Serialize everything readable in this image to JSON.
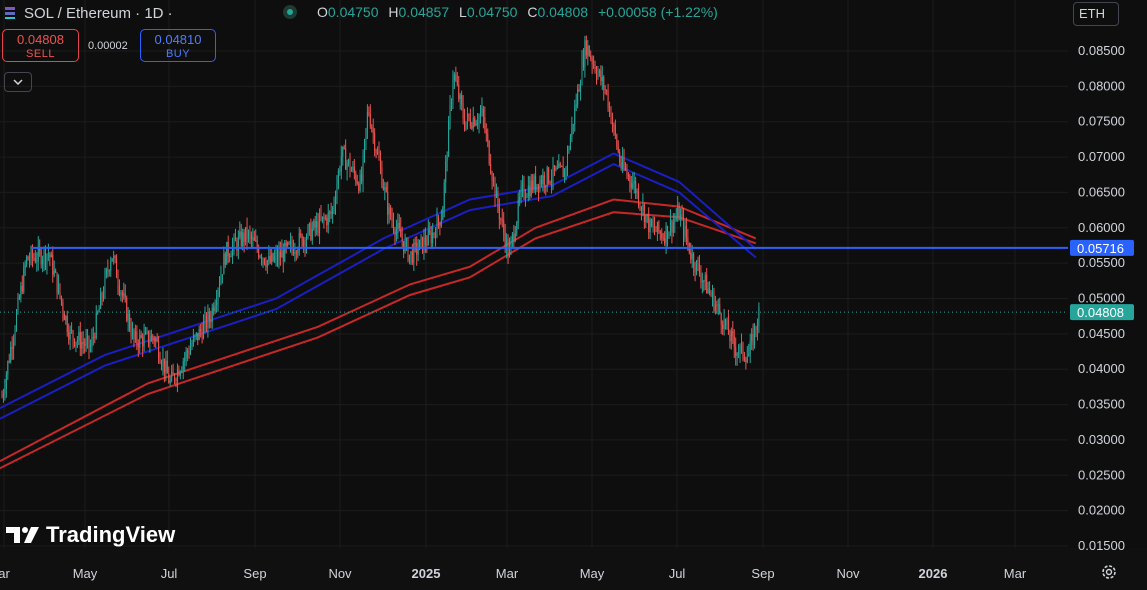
{
  "header": {
    "title": "SOL / Ethereum · 1D ·",
    "ohlc": {
      "o_label": "O",
      "o": "0.04750",
      "h_label": "H",
      "h": "0.04857",
      "l_label": "L",
      "l": "0.04750",
      "c_label": "C",
      "c": "0.04808",
      "change": "+0.00058 (+1.22%)"
    }
  },
  "trade": {
    "sell_price": "0.04808",
    "sell_label": "SELL",
    "spread": "0.00002",
    "buy_price": "0.04810",
    "buy_label": "BUY"
  },
  "currency": "ETH",
  "brand": "TradingView",
  "colors": {
    "background": "#0e0e0e",
    "up": "#26a69a",
    "down": "#ef5350",
    "blue_line": "#2962ff",
    "red_band": "#c62828",
    "blue_band": "#1a1fc4"
  },
  "chart_data": {
    "type": "candlestick",
    "symbol": "SOL / Ethereum",
    "interval": "1D",
    "x_tick_labels": [
      "ar",
      "May",
      "Jul",
      "Sep",
      "Nov",
      "2025",
      "Mar",
      "May",
      "Jul",
      "Sep",
      "Nov",
      "2026",
      "Mar"
    ],
    "y_tick_labels": [
      "0.08500",
      "0.08000",
      "0.07500",
      "0.07000",
      "0.06500",
      "0.06000",
      "0.05500",
      "0.05000",
      "0.04500",
      "0.04000",
      "0.03500",
      "0.03000",
      "0.02500",
      "0.02000",
      "0.01500"
    ],
    "ylim": [
      0.0125,
      0.0885
    ],
    "grid": true,
    "horizontal_line": {
      "value": 0.05716,
      "label": "0.05716"
    },
    "last_price": {
      "value": 0.04808,
      "label": "0.04808"
    },
    "price_path": [
      [
        "2024-03-01",
        0.0345
      ],
      [
        "2024-03-20",
        0.0555
      ],
      [
        "2024-04-05",
        0.0565
      ],
      [
        "2024-04-20",
        0.045
      ],
      [
        "2024-05-05",
        0.043
      ],
      [
        "2024-05-20",
        0.0565
      ],
      [
        "2024-06-05",
        0.044
      ],
      [
        "2024-06-20",
        0.0445
      ],
      [
        "2024-07-01",
        0.038
      ],
      [
        "2024-07-15",
        0.043
      ],
      [
        "2024-07-30",
        0.0475
      ],
      [
        "2024-08-10",
        0.0565
      ],
      [
        "2024-08-25",
        0.059
      ],
      [
        "2024-09-10",
        0.055
      ],
      [
        "2024-09-25",
        0.057
      ],
      [
        "2024-10-10",
        0.0595
      ],
      [
        "2024-10-25",
        0.062
      ],
      [
        "2024-11-01",
        0.0705
      ],
      [
        "2024-11-15",
        0.066
      ],
      [
        "2024-11-20",
        0.077
      ],
      [
        "2024-11-28",
        0.069
      ],
      [
        "2024-12-05",
        0.062
      ],
      [
        "2024-12-20",
        0.056
      ],
      [
        "2025-01-05",
        0.059
      ],
      [
        "2025-01-12",
        0.062
      ],
      [
        "2025-01-20",
        0.082
      ],
      [
        "2025-01-28",
        0.075
      ],
      [
        "2025-02-10",
        0.076
      ],
      [
        "2025-02-20",
        0.064
      ],
      [
        "2025-03-01",
        0.056
      ],
      [
        "2025-03-10",
        0.065
      ],
      [
        "2025-03-25",
        0.067
      ],
      [
        "2025-04-10",
        0.068
      ],
      [
        "2025-04-25",
        0.086
      ],
      [
        "2025-05-10",
        0.079
      ],
      [
        "2025-05-20",
        0.069
      ],
      [
        "2025-05-30",
        0.066
      ],
      [
        "2025-06-10",
        0.06
      ],
      [
        "2025-06-20",
        0.059
      ],
      [
        "2025-07-01",
        0.062
      ],
      [
        "2025-07-10",
        0.056
      ],
      [
        "2025-07-20",
        0.052
      ],
      [
        "2025-07-30",
        0.048
      ],
      [
        "2025-08-10",
        0.043
      ],
      [
        "2025-08-20",
        0.042
      ],
      [
        "2025-08-28",
        0.0485
      ]
    ],
    "red_band": [
      [
        [
          "2024-03-01",
          0.027
        ],
        [
          "2024-06-15",
          0.038
        ],
        [
          "2024-10-15",
          0.046
        ],
        [
          "2024-12-20",
          0.052
        ],
        [
          "2025-02-01",
          0.0545
        ],
        [
          "2025-03-20",
          0.06
        ],
        [
          "2025-05-15",
          0.064
        ],
        [
          "2025-07-01",
          0.063
        ],
        [
          "2025-08-25",
          0.0585
        ]
      ],
      [
        [
          "2024-03-01",
          0.026
        ],
        [
          "2024-06-15",
          0.0365
        ],
        [
          "2024-10-15",
          0.0445
        ],
        [
          "2024-12-20",
          0.0505
        ],
        [
          "2025-02-01",
          0.053
        ],
        [
          "2025-03-20",
          0.0585
        ],
        [
          "2025-05-15",
          0.0622
        ],
        [
          "2025-07-01",
          0.0615
        ],
        [
          "2025-08-25",
          0.0578
        ]
      ]
    ],
    "blue_band": [
      [
        [
          "2024-03-01",
          0.0345
        ],
        [
          "2024-05-15",
          0.042
        ],
        [
          "2024-09-15",
          0.05
        ],
        [
          "2024-12-01",
          0.0585
        ],
        [
          "2025-02-01",
          0.064
        ],
        [
          "2025-04-01",
          0.066
        ],
        [
          "2025-05-15",
          0.0705
        ],
        [
          "2025-07-01",
          0.0665
        ],
        [
          "2025-08-25",
          0.057
        ]
      ],
      [
        [
          "2024-03-01",
          0.033
        ],
        [
          "2024-05-15",
          0.0405
        ],
        [
          "2024-09-15",
          0.0485
        ],
        [
          "2024-12-01",
          0.057
        ],
        [
          "2025-02-01",
          0.0625
        ],
        [
          "2025-04-01",
          0.0645
        ],
        [
          "2025-05-15",
          0.069
        ],
        [
          "2025-07-01",
          0.065
        ],
        [
          "2025-08-25",
          0.0558
        ]
      ]
    ]
  }
}
